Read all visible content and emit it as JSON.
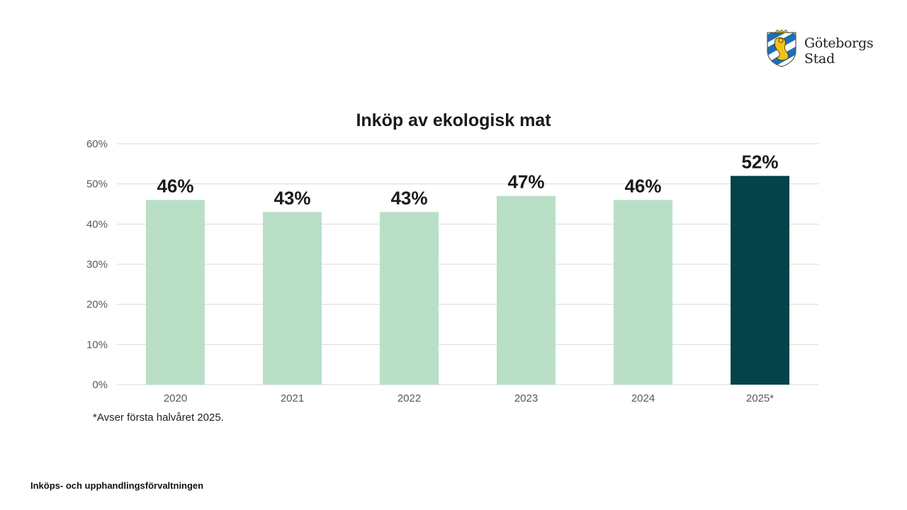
{
  "brand": {
    "name_line1": "Göteborgs",
    "name_line2": "Stad",
    "logo_icon": "goteborg-coat-of-arms-icon"
  },
  "chart_data": {
    "type": "bar",
    "title": "Inköp av ekologisk mat",
    "xlabel": "",
    "ylabel": "",
    "categories": [
      "2020",
      "2021",
      "2022",
      "2023",
      "2024",
      "2025*"
    ],
    "values": [
      46,
      43,
      43,
      47,
      46,
      52
    ],
    "data_labels": [
      "46%",
      "43%",
      "43%",
      "47%",
      "46%",
      "52%"
    ],
    "ylim": [
      0,
      60
    ],
    "yticks": [
      0,
      10,
      20,
      30,
      40,
      50,
      60
    ],
    "ytick_labels": [
      "0%",
      "10%",
      "20%",
      "30%",
      "40%",
      "50%",
      "60%"
    ],
    "grid": true,
    "legend": "none",
    "colors": {
      "default_bar": "#b9e0c7",
      "highlight_bar": "#034349",
      "highlight_index": 5,
      "grid": "#d9d9d9",
      "tick_text": "#595959",
      "label_text": "#1a1a1a"
    }
  },
  "footnote": "*Avser första halvåret 2025.",
  "footer": "Inköps- och upphandlingsförvaltningen"
}
